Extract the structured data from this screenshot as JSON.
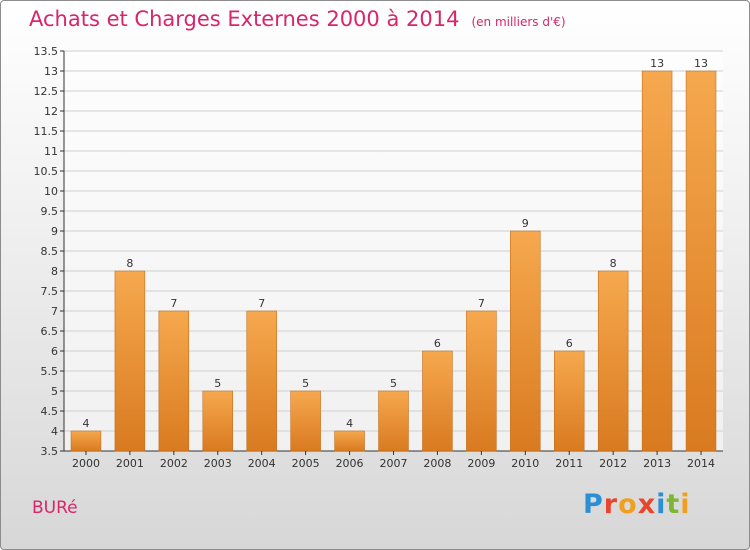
{
  "header": {
    "title": "Achats et Charges Externes 2000 à 2014",
    "subtitle": "(en milliers d'€)"
  },
  "footer": {
    "place": "BURé",
    "logo_text": "Proxiti",
    "logo_colors": [
      "#2b8fd6",
      "#e8452c",
      "#f0a020",
      "#e8452c",
      "#2b8fd6",
      "#7cb82f",
      "#f0a020"
    ]
  },
  "colors": {
    "title": "#d9256a",
    "bar_light": "#f6a84e",
    "bar_dark": "#d97a20",
    "bar_stroke": "#c36f1d"
  },
  "chart_data": {
    "type": "bar",
    "title": "Achats et Charges Externes 2000 à 2014",
    "subtitle": "(en milliers d'€)",
    "categories": [
      "2000",
      "2001",
      "2002",
      "2003",
      "2004",
      "2005",
      "2006",
      "2007",
      "2008",
      "2009",
      "2010",
      "2011",
      "2012",
      "2013",
      "2014"
    ],
    "values": [
      4,
      8,
      7,
      5,
      7,
      5,
      4,
      5,
      6,
      7,
      9,
      6,
      8,
      13,
      13
    ],
    "data_labels": [
      "4",
      "8",
      "7",
      "5",
      "7",
      "5",
      "4",
      "5",
      "6",
      "7",
      "9",
      "6",
      "8",
      "13",
      "13"
    ],
    "yticks": [
      "3.5",
      "4",
      "4.5",
      "5",
      "5.5",
      "6",
      "6.5",
      "7",
      "7.5",
      "8",
      "8.5",
      "9",
      "9.5",
      "10",
      "10.5",
      "11",
      "11.5",
      "12",
      "12.5",
      "13",
      "13.5"
    ],
    "ylim": [
      3.5,
      13.5
    ],
    "xlabel": "",
    "ylabel": "",
    "grid": true,
    "legend": "none"
  }
}
